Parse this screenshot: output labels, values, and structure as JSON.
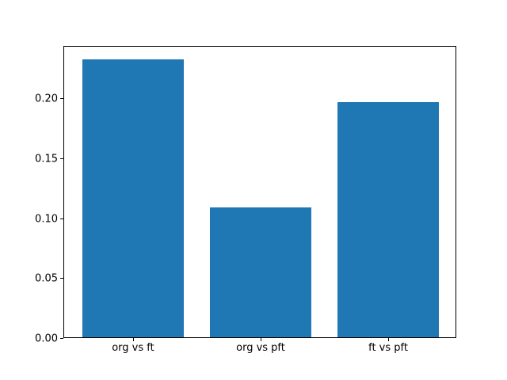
{
  "figure": {
    "background": "#ffffff",
    "title": ""
  },
  "chart_data": {
    "type": "bar",
    "categories": [
      "org vs ft",
      "org vs pft",
      "ft vs pft"
    ],
    "values": [
      0.232,
      0.108,
      0.196
    ],
    "title": "",
    "xlabel": "",
    "ylabel": "",
    "ylim": [
      0,
      0.2436
    ],
    "xlim": [
      -0.54,
      2.54
    ],
    "bar_width": 0.8,
    "yticks": [
      0.0,
      0.05,
      0.1,
      0.15,
      0.2
    ],
    "ytick_labels": [
      "0.00",
      "0.05",
      "0.10",
      "0.15",
      "0.20"
    ],
    "bar_color": "#1f77b4",
    "axis_color": "#000000",
    "grid": false,
    "legend_position": "none"
  }
}
